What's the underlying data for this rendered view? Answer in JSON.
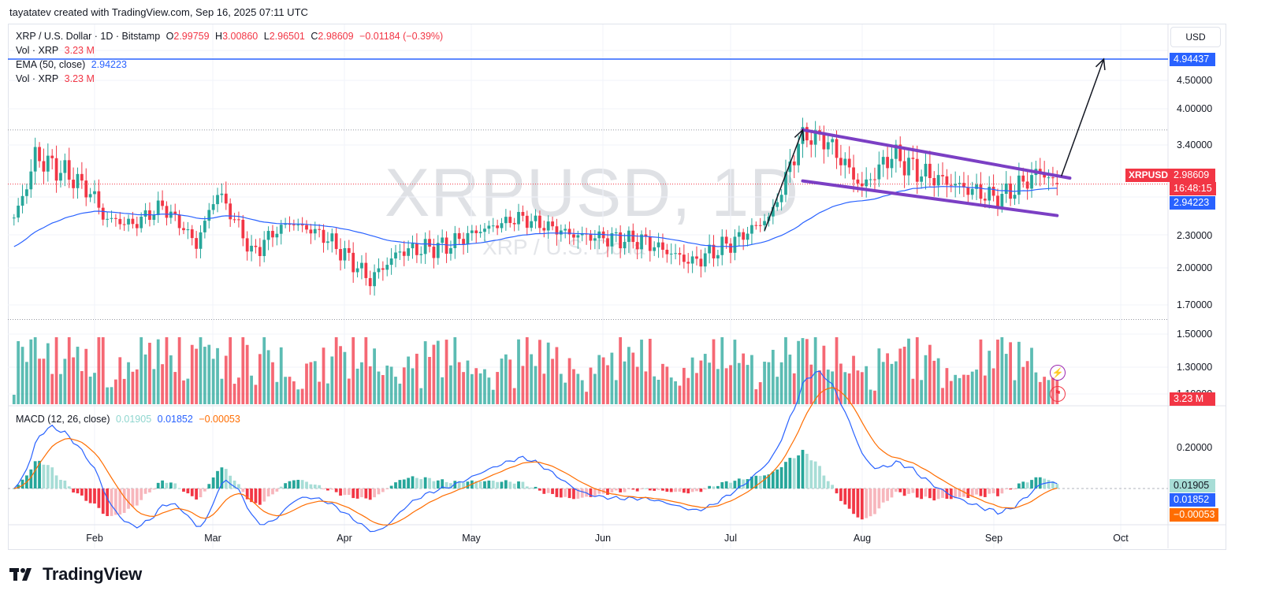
{
  "header": {
    "attribution": "tayatatev created with TradingView.com, Sep 16, 2025 07:11 UTC"
  },
  "legend": {
    "symbol": "XRP / U.S. Dollar · 1D · Bitstamp",
    "open_label": "O",
    "open": "2.99759",
    "high_label": "H",
    "high": "3.00860",
    "low_label": "L",
    "low": "2.96501",
    "close_label": "C",
    "close": "2.98609",
    "change": "−0.01184 (−0.39%)",
    "vol1_label": "Vol · XRP",
    "vol1_value": "3.23 M",
    "ema_label": "EMA (50, close)",
    "ema_value": "2.94223",
    "vol2_label": "Vol · XRP",
    "vol2_value": "3.23 M"
  },
  "watermark": {
    "symbol": "XRPUSD, 1D",
    "name": "XRP / U.S. Dolla"
  },
  "currency_button": "USD",
  "badges": {
    "target": "4.94437",
    "symbol": "XRPUSD",
    "last_price": "2.98609",
    "countdown": "16:48:15",
    "ema": "2.94223",
    "volume": "3.23 M",
    "macd_hist": "0.01905",
    "macd_line": "0.01852",
    "macd_signal": "−0.00053"
  },
  "price_axis": [
    "4.50000",
    "4.00000",
    "3.40000",
    "2.30000",
    "2.00000",
    "1.70000",
    "1.50000",
    "1.30000",
    "1.10000"
  ],
  "macd_axis": [
    "0.20000"
  ],
  "macd_legend": {
    "label": "MACD (12, 26, close)",
    "hist": "0.01905",
    "macd": "0.01852",
    "signal": "−0.00053"
  },
  "x_axis": [
    "Feb",
    "Mar",
    "Apr",
    "May",
    "Jun",
    "Jul",
    "Aug",
    "Sep",
    "Oct"
  ],
  "brand": "TradingView",
  "colors": {
    "up": "#26a69a",
    "down": "#f23645",
    "ema": "#2962ff",
    "signal": "#ff6d00",
    "channel": "#7b3fc4",
    "target_line": "#2962ff",
    "arrow": "#131722"
  },
  "chart_data": {
    "type": "candlestick",
    "symbol": "XRPUSD",
    "interval": "1D",
    "exchange": "Bitstamp",
    "price_range": [
      1.45,
      5.1
    ],
    "waypoints": [
      {
        "date": "2025-01-13",
        "close": 2.55
      },
      {
        "date": "2025-01-18",
        "close": 3.28
      },
      {
        "date": "2025-01-27",
        "close": 3.05
      },
      {
        "date": "2025-02-01",
        "close": 2.85
      },
      {
        "date": "2025-02-03",
        "close": 2.55
      },
      {
        "date": "2025-02-10",
        "close": 2.45
      },
      {
        "date": "2025-02-17",
        "close": 2.72
      },
      {
        "date": "2025-02-25",
        "close": 2.2
      },
      {
        "date": "2025-03-02",
        "close": 2.92
      },
      {
        "date": "2025-03-10",
        "close": 2.12
      },
      {
        "date": "2025-03-19",
        "close": 2.48
      },
      {
        "date": "2025-03-27",
        "close": 2.3
      },
      {
        "date": "2025-04-07",
        "close": 1.9
      },
      {
        "date": "2025-04-14",
        "close": 2.15
      },
      {
        "date": "2025-04-25",
        "close": 2.2
      },
      {
        "date": "2025-05-12",
        "close": 2.55
      },
      {
        "date": "2025-05-25",
        "close": 2.3
      },
      {
        "date": "2025-06-10",
        "close": 2.25
      },
      {
        "date": "2025-06-22",
        "close": 2.05
      },
      {
        "date": "2025-07-03",
        "close": 2.27
      },
      {
        "date": "2025-07-10",
        "close": 2.55
      },
      {
        "date": "2025-07-18",
        "close": 3.55
      },
      {
        "date": "2025-07-23",
        "close": 3.5
      },
      {
        "date": "2025-08-01",
        "close": 2.95
      },
      {
        "date": "2025-08-08",
        "close": 3.3
      },
      {
        "date": "2025-08-15",
        "close": 3.1
      },
      {
        "date": "2025-08-25",
        "close": 2.95
      },
      {
        "date": "2025-09-02",
        "close": 2.82
      },
      {
        "date": "2025-09-12",
        "close": 3.12
      },
      {
        "date": "2025-09-16",
        "close": 2.98609
      }
    ],
    "last_bar": {
      "open": 2.99759,
      "high": 3.0086,
      "low": 2.96501,
      "close": 2.98609,
      "change": -0.01184,
      "change_pct": -0.39,
      "volume": "3.23 M"
    },
    "ema50_last": 2.94223,
    "macd": {
      "fast": 12,
      "slow": 26,
      "hist": 0.01905,
      "macd": 0.01852,
      "signal": -0.00053,
      "axis_ticks": [
        0.2
      ]
    },
    "annotations": {
      "horizontal_levels": [
        4.94437,
        3.65,
        1.6
      ],
      "channel_upper": [
        {
          "date": "2025-07-18",
          "price": 3.65
        },
        {
          "date": "2025-09-19",
          "price": 3.05
        }
      ],
      "channel_lower": [
        {
          "date": "2025-07-18",
          "price": 3.02
        },
        {
          "date": "2025-09-16",
          "price": 2.58
        }
      ],
      "projection_arrow": [
        {
          "date": "2025-09-17",
          "price": 3.07
        },
        {
          "date": "2025-09-27",
          "price": 4.94437
        }
      ],
      "pole_arrow": [
        {
          "date": "2025-07-09",
          "price": 2.36
        },
        {
          "date": "2025-07-18",
          "price": 3.65
        }
      ]
    },
    "x_labels": [
      "Feb",
      "Mar",
      "Apr",
      "May",
      "Jun",
      "Jul",
      "Aug",
      "Sep",
      "Oct"
    ],
    "y_labels": [
      "4.50000",
      "4.00000",
      "3.40000",
      "2.30000",
      "2.00000",
      "1.70000",
      "1.50000",
      "1.30000",
      "1.10000"
    ]
  }
}
